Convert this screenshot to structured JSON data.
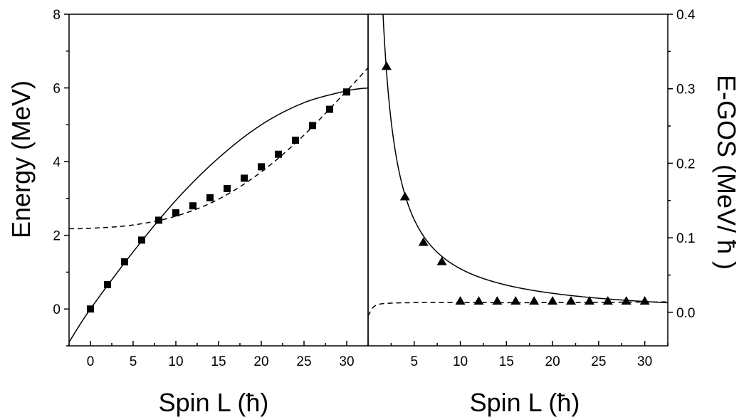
{
  "chart_data": [
    {
      "type": "line",
      "panel": "left",
      "xlabel": "Spin L (ħ)",
      "ylabel": "Energy (MeV)",
      "xlim": [
        -2.5,
        32.5
      ],
      "ylim": [
        -1,
        8
      ],
      "xticks": [
        0,
        5,
        10,
        15,
        20,
        25,
        30
      ],
      "yticks": [
        0,
        2,
        4,
        6,
        8
      ],
      "series": [
        {
          "marker": "square",
          "x": [
            0,
            2,
            4,
            6,
            8,
            10,
            12,
            14,
            16,
            18,
            20,
            22,
            24,
            26,
            28,
            30
          ],
          "y": [
            0.0,
            0.66,
            1.28,
            1.87,
            2.41,
            2.61,
            2.8,
            3.02,
            3.27,
            3.55,
            3.86,
            4.2,
            4.58,
            4.98,
            5.42,
            5.89
          ]
        },
        {
          "style": "solid",
          "x": [
            -2.5,
            0,
            5,
            10,
            15,
            20,
            25,
            30,
            32.5
          ],
          "y": [
            -0.9,
            0.0,
            1.55,
            2.95,
            4.1,
            5.0,
            5.6,
            5.92,
            6.0
          ]
        },
        {
          "style": "dashed",
          "x": [
            -2.5,
            0,
            5,
            10,
            15,
            20,
            25,
            30,
            32.5
          ],
          "y": [
            2.18,
            2.19,
            2.28,
            2.52,
            2.98,
            3.72,
            4.72,
            5.92,
            6.55
          ]
        }
      ]
    },
    {
      "type": "line",
      "panel": "right",
      "xlabel": "Spin L (ħ)",
      "ylabel": "E-GOS (MeV/ ħ )",
      "xlim": [
        0,
        32.5
      ],
      "ylim": [
        -0.045,
        0.4
      ],
      "xticks": [
        5,
        10,
        15,
        20,
        25,
        30
      ],
      "yticks": [
        0.0,
        0.1,
        0.2,
        0.3,
        0.4
      ],
      "series": [
        {
          "marker": "triangle",
          "x": [
            2,
            4,
            6,
            8,
            10,
            12,
            14,
            16,
            18,
            20,
            22,
            24,
            26,
            28,
            30
          ],
          "y": [
            0.33,
            0.155,
            0.094,
            0.068,
            0.015,
            0.015,
            0.015,
            0.015,
            0.015,
            0.015,
            0.015,
            0.015,
            0.015,
            0.015,
            0.015
          ]
        },
        {
          "style": "solid",
          "function": "0.66/L - 0.0075",
          "x": [
            1.6,
            2,
            4,
            6,
            8,
            10,
            15,
            20,
            25,
            30,
            32.5
          ],
          "y": [
            0.405,
            0.3225,
            0.1575,
            0.1025,
            0.075,
            0.0585,
            0.0365,
            0.0255,
            0.0189,
            0.0145,
            0.0128
          ]
        },
        {
          "style": "dashed",
          "x": [
            0,
            0.5,
            1,
            2,
            5,
            10,
            20,
            32.5
          ],
          "y": [
            -0.005,
            0.006,
            0.01,
            0.012,
            0.013,
            0.013,
            0.013,
            0.014
          ]
        }
      ]
    }
  ]
}
